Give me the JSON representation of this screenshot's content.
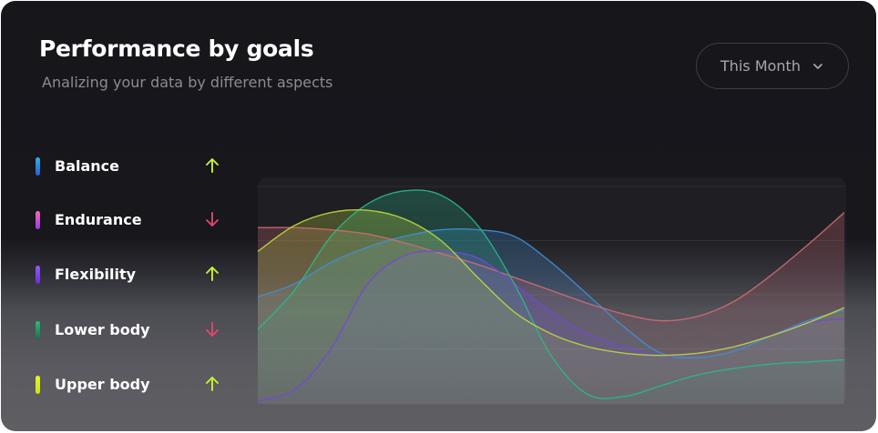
{
  "header": {
    "title": "Performance by goals",
    "subtitle": "Analizing your data by different aspects",
    "period_label": "This Month"
  },
  "colors": {
    "up": "#c6f432",
    "down": "#e2466a"
  },
  "chart_data": {
    "type": "area",
    "title": "Performance by goals",
    "grid": true,
    "legend_position": "left",
    "ylim": [
      0,
      100
    ],
    "x": [
      0,
      1,
      2,
      3,
      4,
      5,
      6,
      7,
      8,
      9,
      10,
      11,
      12,
      13,
      14,
      15,
      16
    ],
    "series": [
      {
        "name": "Balance",
        "trend": "up",
        "color": "#3f8fd6",
        "pill": [
          "#2ab0e0",
          "#2a5fd0"
        ],
        "values": [
          49,
          55,
          65,
          72,
          77,
          80,
          80,
          77,
          65,
          50,
          35,
          23,
          21,
          24,
          31,
          38,
          43
        ]
      },
      {
        "name": "Endurance",
        "trend": "down",
        "color": "#d06a74",
        "pill": [
          "#f06db2",
          "#9a39e6"
        ],
        "values": [
          81,
          81,
          80,
          78,
          74,
          69,
          64,
          58,
          52,
          46,
          41,
          38,
          40,
          47,
          59,
          73,
          88
        ]
      },
      {
        "name": "Flexibility",
        "trend": "up",
        "color": "#7448d6",
        "pill": [
          "#8d5cf6",
          "#6a2fd6"
        ],
        "values": [
          1,
          6,
          25,
          55,
          68,
          70,
          67,
          55,
          42,
          32,
          26,
          22,
          23,
          26,
          31,
          37,
          39
        ]
      },
      {
        "name": "Lower body",
        "trend": "down",
        "color": "#2ab88a",
        "pill": [
          "#2dbd78",
          "#1f6b4c"
        ],
        "values": [
          34,
          52,
          77,
          92,
          98,
          96,
          82,
          55,
          22,
          4,
          3,
          8,
          13,
          16,
          18,
          19,
          20
        ]
      },
      {
        "name": "Upper body",
        "trend": "up",
        "color": "#bfd83e",
        "pill": [
          "#e2f522",
          "#cfe21a"
        ],
        "values": [
          70,
          82,
          88,
          89,
          85,
          75,
          58,
          42,
          32,
          26,
          23,
          22,
          23,
          26,
          31,
          37,
          44
        ]
      }
    ]
  }
}
